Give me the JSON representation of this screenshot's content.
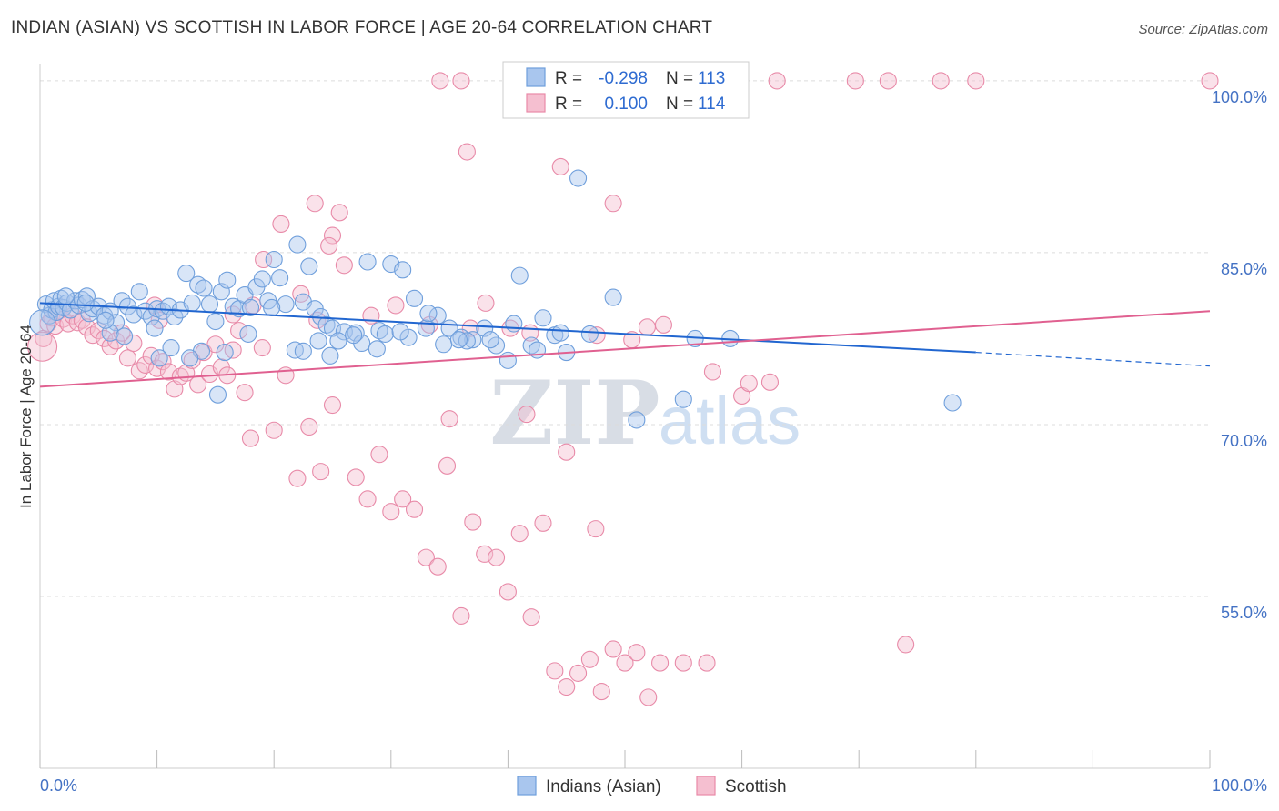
{
  "title": "INDIAN (ASIAN) VS SCOTTISH IN LABOR FORCE | AGE 20-64 CORRELATION CHART",
  "source": "Source: ZipAtlas.com",
  "watermark": {
    "zip": "ZIP",
    "atlas": "atlas"
  },
  "colors": {
    "blue": "#6f9fdc",
    "blue_fill": "#a9c6ee",
    "blue_line": "#2166d0",
    "pink": "#e88aa8",
    "pink_fill": "#f5bfd0",
    "pink_line": "#e06090",
    "axis_label": "#4472c4"
  },
  "legend_top": {
    "r_label": "R =",
    "n_label": "N =",
    "rows": [
      {
        "series": "Indians (Asian)",
        "r": "-0.298",
        "n": "113"
      },
      {
        "series": "Scottish",
        "r": "0.100",
        "n": "114"
      }
    ]
  },
  "chart_data": {
    "type": "scatter",
    "title": "INDIAN (ASIAN) VS SCOTTISH IN LABOR FORCE | AGE 20-64 CORRELATION CHART",
    "xlabel": "",
    "ylabel": "In Labor Force | Age 20-64",
    "x_tick_labels": [
      "0.0%",
      "100.0%"
    ],
    "y_tick_labels": [
      "100.0%",
      "85.0%",
      "70.0%",
      "55.0%"
    ],
    "xlim": [
      0,
      100
    ],
    "ylim": [
      40,
      101.5
    ],
    "y_ticks": [
      100,
      85,
      70,
      55
    ],
    "grid": true,
    "legend_position": "top-center",
    "series": [
      {
        "name": "Indians (Asian)",
        "trend": {
          "x0": 0,
          "y0": 80.6,
          "x1": 80,
          "y1": 76.3,
          "dashed_to": 100,
          "dashed_y": 75.1
        },
        "points": [
          [
            0.5,
            80.5
          ],
          [
            0.8,
            79.5
          ],
          [
            1.0,
            80.0
          ],
          [
            1.2,
            80.8
          ],
          [
            1.4,
            79.8
          ],
          [
            1.6,
            80.3
          ],
          [
            1.8,
            81.0
          ],
          [
            2.0,
            80.2
          ],
          [
            2.3,
            80.6
          ],
          [
            2.6,
            80.0
          ],
          [
            3.0,
            80.8
          ],
          [
            3.3,
            80.4
          ],
          [
            3.6,
            80.9
          ],
          [
            4.0,
            81.2
          ],
          [
            4.2,
            79.7
          ],
          [
            4.5,
            80.1
          ],
          [
            5.0,
            80.3
          ],
          [
            5.5,
            79.5
          ],
          [
            6.0,
            79.9
          ],
          [
            6.5,
            78.9
          ],
          [
            7.0,
            80.8
          ],
          [
            7.5,
            80.3
          ],
          [
            8.0,
            79.6
          ],
          [
            8.5,
            81.6
          ],
          [
            9.0,
            79.9
          ],
          [
            9.5,
            79.4
          ],
          [
            10.0,
            80.1
          ],
          [
            10.5,
            79.9
          ],
          [
            11.0,
            80.3
          ],
          [
            11.5,
            79.4
          ],
          [
            12.0,
            80.0
          ],
          [
            12.5,
            83.2
          ],
          [
            13.0,
            80.6
          ],
          [
            13.5,
            82.2
          ],
          [
            14.0,
            81.9
          ],
          [
            14.5,
            80.5
          ],
          [
            15.0,
            79.0
          ],
          [
            15.5,
            81.6
          ],
          [
            16.0,
            82.6
          ],
          [
            16.5,
            80.3
          ],
          [
            17.0,
            80.1
          ],
          [
            17.5,
            81.3
          ],
          [
            18.0,
            80.2
          ],
          [
            18.5,
            82.0
          ],
          [
            19.0,
            82.7
          ],
          [
            19.5,
            80.8
          ],
          [
            20.0,
            84.4
          ],
          [
            20.5,
            82.8
          ],
          [
            21.0,
            80.5
          ],
          [
            22.0,
            85.7
          ],
          [
            22.5,
            80.7
          ],
          [
            23.0,
            83.8
          ],
          [
            23.5,
            80.1
          ],
          [
            24.0,
            79.4
          ],
          [
            24.5,
            78.7
          ],
          [
            25.0,
            78.4
          ],
          [
            26.0,
            78.1
          ],
          [
            27.0,
            78.0
          ],
          [
            28.0,
            84.2
          ],
          [
            29.0,
            78.2
          ],
          [
            30.0,
            84.0
          ],
          [
            31.0,
            83.5
          ],
          [
            32.0,
            81.0
          ],
          [
            33.0,
            78.4
          ],
          [
            34.0,
            79.5
          ],
          [
            35.0,
            78.4
          ],
          [
            36.0,
            77.6
          ],
          [
            37.0,
            77.4
          ],
          [
            38.0,
            78.4
          ],
          [
            39.0,
            76.9
          ],
          [
            40.0,
            75.6
          ],
          [
            41.0,
            83.0
          ],
          [
            42.0,
            76.9
          ],
          [
            43.0,
            79.3
          ],
          [
            44.0,
            77.8
          ],
          [
            45.0,
            76.3
          ],
          [
            46.0,
            91.5
          ],
          [
            47.0,
            77.9
          ],
          [
            49.0,
            81.1
          ],
          [
            51.0,
            70.4
          ],
          [
            55.0,
            72.2
          ],
          [
            56.0,
            77.5
          ],
          [
            59.0,
            77.5
          ],
          [
            78.0,
            71.9
          ],
          [
            6.0,
            78.0
          ],
          [
            7.2,
            77.7
          ],
          [
            9.8,
            78.4
          ],
          [
            11.2,
            76.7
          ],
          [
            13.8,
            76.4
          ],
          [
            15.8,
            76.3
          ],
          [
            17.8,
            77.9
          ],
          [
            19.8,
            80.2
          ],
          [
            21.8,
            76.5
          ],
          [
            23.8,
            77.3
          ],
          [
            25.5,
            77.3
          ],
          [
            27.5,
            77.1
          ],
          [
            29.5,
            77.9
          ],
          [
            31.5,
            77.6
          ],
          [
            34.5,
            77.0
          ],
          [
            36.5,
            77.3
          ],
          [
            38.5,
            77.4
          ],
          [
            40.5,
            78.8
          ],
          [
            42.5,
            76.5
          ],
          [
            44.5,
            78.0
          ],
          [
            10.2,
            75.8
          ],
          [
            12.8,
            75.8
          ],
          [
            15.2,
            72.6
          ],
          [
            22.5,
            76.4
          ],
          [
            24.8,
            76.0
          ],
          [
            26.8,
            77.8
          ],
          [
            28.8,
            76.6
          ],
          [
            30.8,
            78.1
          ],
          [
            33.2,
            79.7
          ],
          [
            35.8,
            77.4
          ],
          [
            2.2,
            81.2
          ],
          [
            3.9,
            80.6
          ],
          [
            5.6,
            79.1
          ]
        ]
      },
      {
        "name": "Scottish",
        "trend": {
          "x0": 0,
          "y0": 73.3,
          "x1": 100,
          "y1": 79.9
        },
        "points": [
          [
            0.3,
            77.5
          ],
          [
            0.7,
            78.8
          ],
          [
            1.0,
            79.3
          ],
          [
            1.3,
            78.6
          ],
          [
            1.6,
            79.9
          ],
          [
            2.0,
            79.2
          ],
          [
            2.4,
            78.8
          ],
          [
            2.8,
            79.5
          ],
          [
            3.2,
            78.9
          ],
          [
            3.6,
            79.1
          ],
          [
            4.0,
            78.5
          ],
          [
            4.5,
            77.8
          ],
          [
            5.0,
            78.2
          ],
          [
            5.5,
            77.5
          ],
          [
            6.0,
            76.8
          ],
          [
            6.5,
            77.3
          ],
          [
            7.0,
            78.0
          ],
          [
            7.5,
            75.8
          ],
          [
            8.0,
            77.1
          ],
          [
            8.5,
            74.7
          ],
          [
            9.0,
            75.2
          ],
          [
            9.5,
            76.0
          ],
          [
            10.0,
            74.9
          ],
          [
            10.5,
            75.5
          ],
          [
            11.0,
            74.6
          ],
          [
            11.5,
            73.1
          ],
          [
            12.0,
            74.2
          ],
          [
            12.5,
            74.5
          ],
          [
            13.0,
            75.6
          ],
          [
            13.5,
            73.5
          ],
          [
            14.0,
            76.3
          ],
          [
            14.5,
            74.4
          ],
          [
            15.0,
            77.0
          ],
          [
            15.5,
            75.0
          ],
          [
            16.0,
            74.3
          ],
          [
            16.5,
            76.5
          ],
          [
            17.0,
            78.2
          ],
          [
            17.5,
            72.8
          ],
          [
            18.0,
            68.8
          ],
          [
            19.0,
            76.7
          ],
          [
            20.0,
            69.5
          ],
          [
            21.0,
            74.3
          ],
          [
            22.0,
            65.3
          ],
          [
            23.0,
            69.8
          ],
          [
            24.0,
            65.9
          ],
          [
            25.0,
            71.7
          ],
          [
            26.0,
            83.9
          ],
          [
            27.0,
            65.4
          ],
          [
            28.0,
            63.5
          ],
          [
            29.0,
            67.4
          ],
          [
            30.0,
            62.4
          ],
          [
            31.0,
            63.5
          ],
          [
            32.0,
            62.6
          ],
          [
            33.0,
            58.4
          ],
          [
            34.0,
            57.6
          ],
          [
            35.0,
            70.5
          ],
          [
            36.0,
            53.3
          ],
          [
            37.0,
            61.5
          ],
          [
            38.0,
            58.7
          ],
          [
            39.0,
            58.4
          ],
          [
            40.0,
            55.4
          ],
          [
            41.0,
            60.5
          ],
          [
            42.0,
            53.2
          ],
          [
            43.0,
            61.4
          ],
          [
            44.0,
            48.5
          ],
          [
            45.0,
            47.1
          ],
          [
            46.0,
            48.3
          ],
          [
            47.0,
            49.5
          ],
          [
            48.0,
            46.7
          ],
          [
            49.0,
            50.4
          ],
          [
            50.0,
            49.2
          ],
          [
            51.0,
            50.1
          ],
          [
            52.0,
            46.2
          ],
          [
            53.0,
            49.2
          ],
          [
            55.0,
            49.2
          ],
          [
            57.0,
            49.2
          ],
          [
            60.0,
            72.5
          ],
          [
            74.0,
            50.8
          ],
          [
            34.2,
            100.0
          ],
          [
            36.0,
            100.0
          ],
          [
            51.3,
            100.0
          ],
          [
            55.8,
            100.0
          ],
          [
            58.0,
            100.0
          ],
          [
            63.0,
            100.0
          ],
          [
            69.7,
            100.0
          ],
          [
            72.5,
            100.0
          ],
          [
            77.0,
            100.0
          ],
          [
            80.0,
            100.0
          ],
          [
            100.0,
            100.0
          ],
          [
            36.5,
            93.8
          ],
          [
            44.5,
            92.5
          ],
          [
            49.0,
            89.3
          ],
          [
            23.5,
            89.3
          ],
          [
            25.6,
            88.5
          ],
          [
            25.0,
            86.5
          ],
          [
            20.6,
            87.5
          ],
          [
            24.7,
            85.6
          ],
          [
            19.1,
            84.4
          ],
          [
            9.8,
            80.4
          ],
          [
            10.2,
            79.1
          ],
          [
            16.5,
            79.6
          ],
          [
            18.2,
            80.4
          ],
          [
            22.3,
            81.4
          ],
          [
            23.7,
            79.1
          ],
          [
            28.3,
            79.5
          ],
          [
            30.4,
            80.4
          ],
          [
            33.3,
            78.7
          ],
          [
            36.8,
            78.4
          ],
          [
            38.1,
            80.6
          ],
          [
            40.2,
            78.4
          ],
          [
            41.9,
            78.0
          ],
          [
            47.6,
            77.8
          ],
          [
            50.6,
            77.4
          ],
          [
            51.9,
            78.5
          ],
          [
            53.3,
            78.7
          ],
          [
            57.5,
            74.6
          ],
          [
            60.6,
            73.6
          ],
          [
            62.4,
            73.7
          ],
          [
            34.8,
            66.4
          ],
          [
            41.6,
            70.9
          ],
          [
            45.0,
            67.6
          ],
          [
            47.5,
            60.9
          ]
        ]
      }
    ]
  },
  "axes": {
    "x_left_label": "0.0%",
    "x_right_label": "100.0%",
    "y_title": "In Labor Force | Age 20-64"
  },
  "legend_bottom": [
    "Indians (Asian)",
    "Scottish"
  ]
}
